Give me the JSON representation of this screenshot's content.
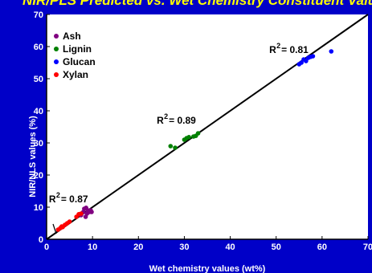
{
  "chart_data": {
    "type": "scatter",
    "title": "NIR/PLS Predicted vs. Wet Chemistry Constituent Values",
    "xlabel": "Wet chemistry values (wt%)",
    "ylabel": "NIR/NLS values (%)",
    "xlim": [
      0,
      70
    ],
    "ylim": [
      0,
      70
    ],
    "xticks": [
      0,
      10,
      20,
      30,
      40,
      50,
      60,
      70
    ],
    "yticks": [
      0,
      10,
      20,
      30,
      40,
      50,
      60,
      70
    ],
    "grid": false,
    "legend_position": "top-left",
    "reference_line": {
      "from": [
        0,
        0
      ],
      "to": [
        70,
        70
      ]
    },
    "series": [
      {
        "name": "Ash",
        "color": "#800080",
        "points": [
          [
            7.5,
            7.5
          ],
          [
            8,
            8.5
          ],
          [
            8.2,
            9.5
          ],
          [
            8.5,
            7
          ],
          [
            8.8,
            8
          ],
          [
            9,
            9
          ],
          [
            9.3,
            8.5
          ],
          [
            9.6,
            9
          ],
          [
            9.8,
            8.5
          ],
          [
            8.6,
            9.8
          ]
        ]
      },
      {
        "name": "Lignin",
        "color": "#008000",
        "points": [
          [
            27,
            29
          ],
          [
            28,
            28.5
          ],
          [
            30,
            31
          ],
          [
            30.5,
            31.5
          ],
          [
            31,
            31.8
          ],
          [
            32,
            32
          ],
          [
            32.5,
            32.2
          ],
          [
            33,
            33
          ]
        ]
      },
      {
        "name": "Glucan",
        "color": "#0000ff",
        "points": [
          [
            55,
            54.5
          ],
          [
            55.5,
            55
          ],
          [
            56,
            56
          ],
          [
            56.5,
            55.5
          ],
          [
            57,
            56.5
          ],
          [
            57.5,
            56.8
          ],
          [
            58,
            57
          ],
          [
            62,
            58.5
          ]
        ]
      },
      {
        "name": "Xylan",
        "color": "#ff0000",
        "points": [
          [
            2.5,
            3
          ],
          [
            3,
            3.5
          ],
          [
            3.3,
            4
          ],
          [
            3.5,
            3.8
          ],
          [
            4,
            4.5
          ],
          [
            4.5,
            5
          ],
          [
            5,
            5.5
          ],
          [
            6.5,
            7
          ],
          [
            7,
            7.8
          ],
          [
            7.5,
            8
          ]
        ]
      }
    ],
    "annotations": [
      {
        "text": "R",
        "sup": "2",
        "value": "= 0.81",
        "x": 48.5,
        "y": 58
      },
      {
        "text": "R",
        "sup": "2",
        "value": "= 0.89",
        "x": 24,
        "y": 36
      },
      {
        "text": "R",
        "sup": "2",
        "value": "= 0.87",
        "x": 0.5,
        "y": 11.5
      }
    ]
  }
}
